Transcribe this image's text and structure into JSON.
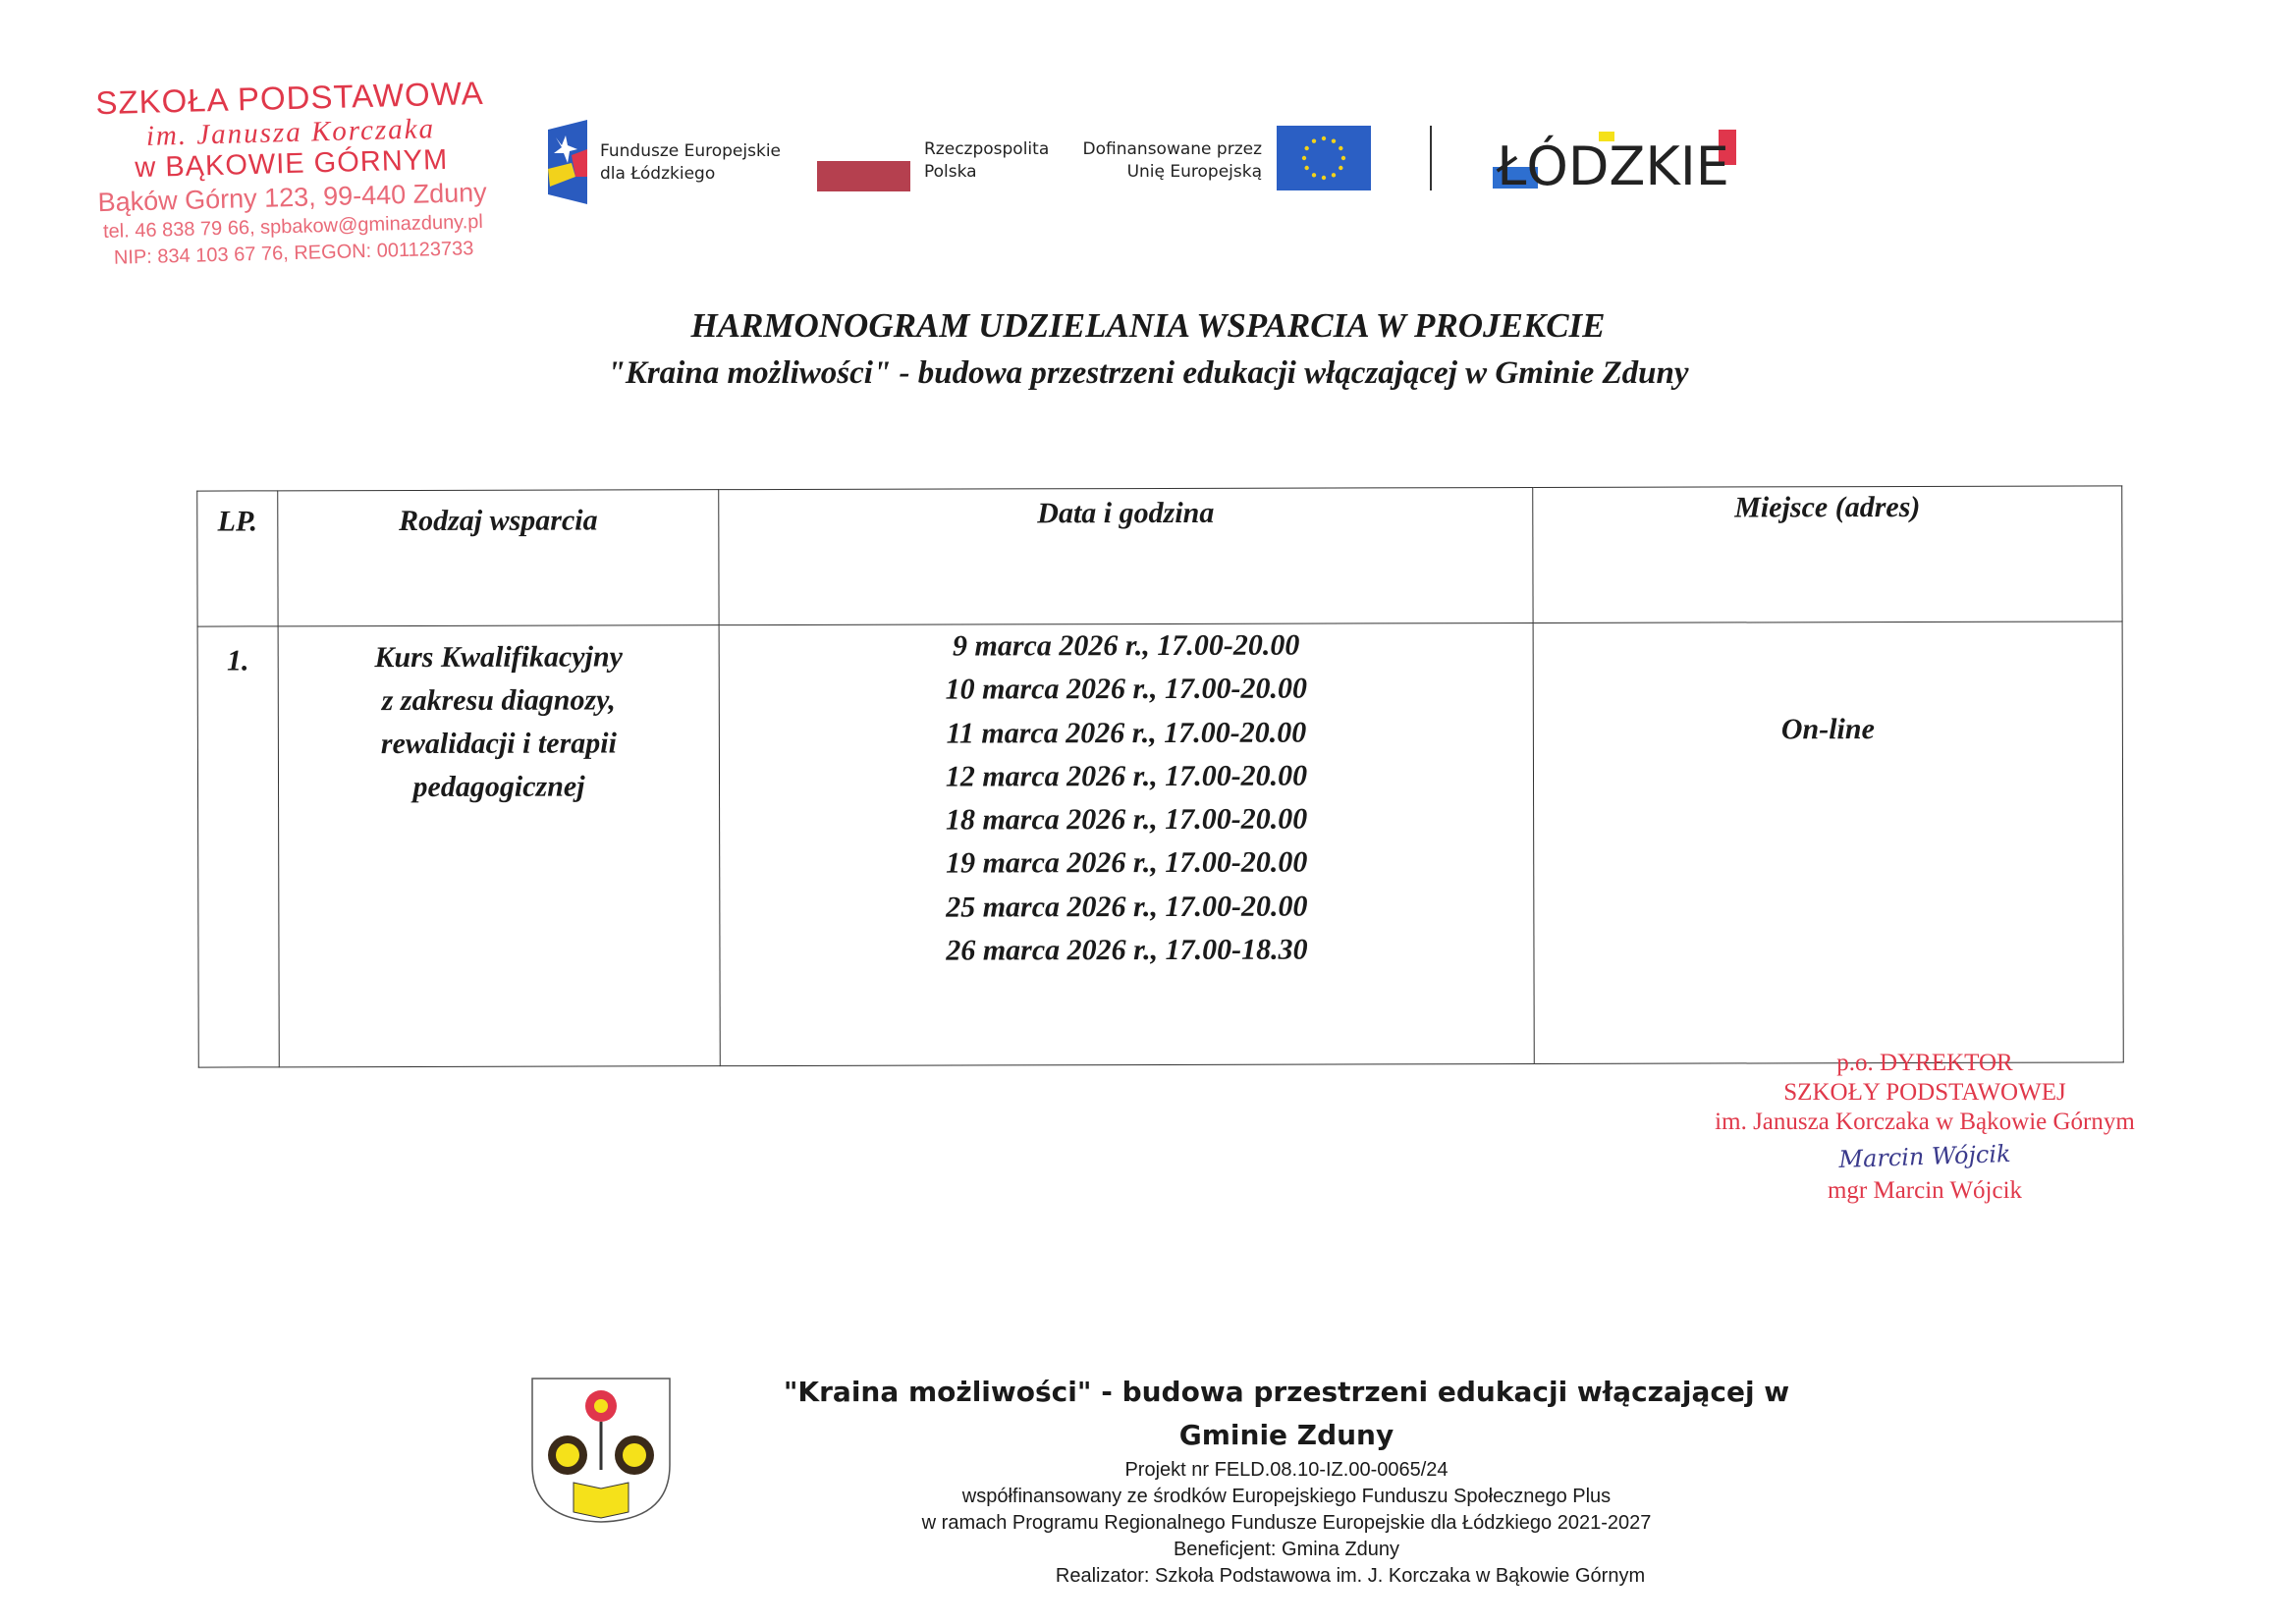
{
  "stamp": {
    "line1": "SZKOŁA PODSTAWOWA",
    "line2": "im. Janusza Korczaka",
    "line3": "w BĄKOWIE GÓRNYM",
    "line4": "Bąków Górny 123, 99-440 Zduny",
    "line5": "tel. 46 838 79 66, spbakow@gminazduny.pl",
    "line6": "NIP: 834 103 67 76, REGON: 001123733"
  },
  "logos": {
    "fe_text1": "Fundusze Europejskie",
    "fe_text2": "dla Łódzkiego",
    "rp_text1": "Rzeczpospolita",
    "rp_text2": "Polska",
    "eu_text1": "Dofinansowane przez",
    "eu_text2": "Unię Europejską",
    "lodzkie": "ŁÓDZKIE",
    "colors": {
      "fe_blue": "#2a5bbf",
      "rp_red": "#b5404f",
      "eu_blue": "#2b5fc4",
      "eu_star": "#f2d21b",
      "lodzkie_red": "#e0364c",
      "lodzkie_yellow": "#f5e11a",
      "lodzkie_blue": "#2e6fd0"
    }
  },
  "title": {
    "line1": "HARMONOGRAM UDZIELANIA WSPARCIA W PROJEKCIE",
    "line2": "\"Kraina możliwości\" - budowa przestrzeni edukacji włączającej w Gminie Zduny"
  },
  "table": {
    "headers": [
      "LP.",
      "Rodzaj wsparcia",
      "Data i godzina",
      "Miejsce (adres)"
    ],
    "rows": [
      {
        "lp": "1.",
        "type": [
          "Kurs Kwalifikacyjny",
          "z zakresu diagnozy,",
          "rewalidacji i terapii",
          "pedagogicznej"
        ],
        "dates": [
          "9 marca 2026 r., 17.00-20.00",
          "10 marca 2026 r., 17.00-20.00",
          "11 marca 2026 r., 17.00-20.00",
          "12 marca 2026 r., 17.00-20.00",
          "18 marca 2026 r., 17.00-20.00",
          "19 marca 2026 r., 17.00-20.00",
          "25 marca 2026 r., 17.00-20.00",
          "26 marca 2026 r., 17.00-18.30"
        ],
        "place": "On-line"
      }
    ]
  },
  "signature": {
    "line1": "p.o. DYREKTOR",
    "line2": "SZKOŁY PODSTAWOWEJ",
    "line3": "im. Janusza Korczaka w Bąkowie Górnym",
    "handwritten": "Marcin Wójcik",
    "name": "mgr Marcin Wójcik"
  },
  "footer": {
    "title": "\"Kraina możliwości\" - budowa przestrzeni edukacji włączającej w Gminie Zduny",
    "project": "Projekt nr FELD.08.10-IZ.00-0065/24",
    "cofinanced": "współfinansowany ze środków Europejskiego Funduszu Społecznego Plus",
    "program": "w ramach Programu Regionalnego Fundusze Europejskie dla Łódzkiego 2021-2027",
    "beneficiary": "Beneficjent: Gmina Zduny",
    "implementer": "Realizator: Szkoła Podstawowa im. J. Korczaka w Bąkowie Górnym"
  }
}
